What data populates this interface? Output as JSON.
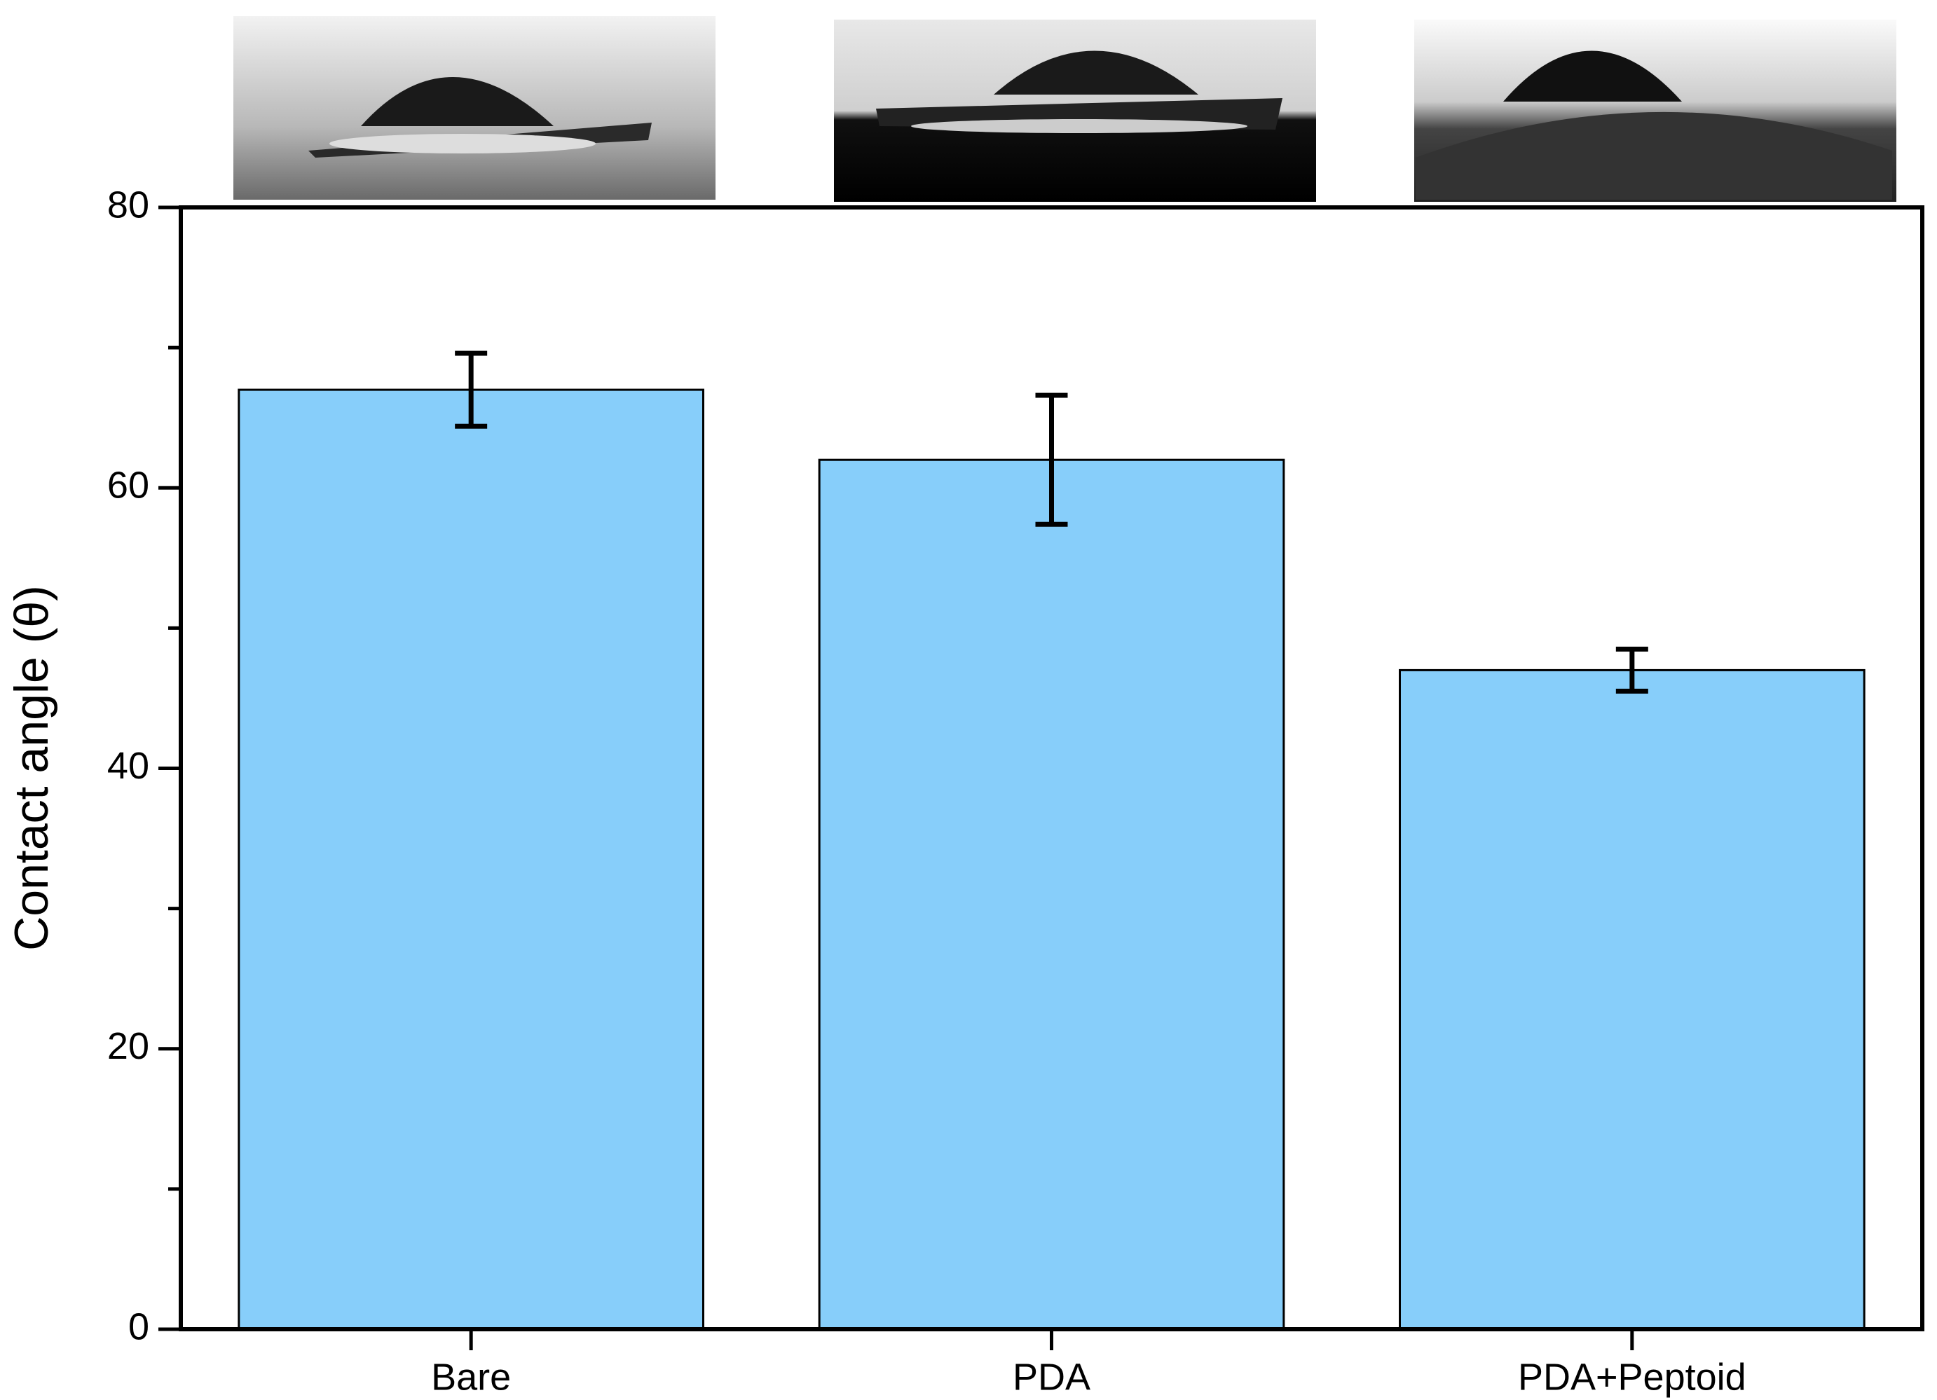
{
  "chart_data": {
    "type": "bar",
    "y_label": "Contact angle (θ)",
    "categories": [
      "Bare",
      "PDA",
      "PDA+Peptoid"
    ],
    "values": [
      67,
      62,
      47
    ],
    "errors": [
      2.6,
      4.6,
      1.5
    ],
    "color": "#87cefa",
    "ylim": [
      0,
      80
    ],
    "yticks": [
      0,
      20,
      40,
      60,
      80
    ],
    "yminor_ticks": [
      10,
      30,
      50,
      70
    ],
    "grid": false
  }
}
